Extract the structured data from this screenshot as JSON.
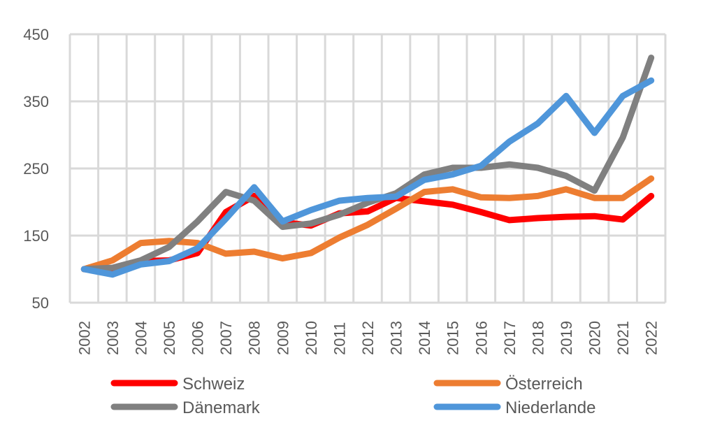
{
  "chart_data": {
    "type": "line",
    "title": "",
    "xlabel": "",
    "ylabel": "",
    "ylim": [
      50,
      450
    ],
    "yticks": [
      "50",
      "150",
      "250",
      "350",
      "450"
    ],
    "grid": true,
    "legend_position": "bottom",
    "categories": [
      "2002",
      "2003",
      "2004",
      "2005",
      "2006",
      "2007",
      "2008",
      "2009",
      "2010",
      "2011",
      "2012",
      "2013",
      "2014",
      "2015",
      "2016",
      "2017",
      "2018",
      "2019",
      "2020",
      "2021",
      "2022"
    ],
    "series": [
      {
        "name": "Schweiz",
        "color": "#FF0000",
        "values": [
          100,
          97,
          112,
          113,
          124,
          185,
          209,
          170,
          165,
          183,
          186,
          206,
          201,
          196,
          185,
          173,
          176,
          178,
          179,
          174,
          209
        ]
      },
      {
        "name": "Österreich",
        "color": "#ED7D31",
        "values": [
          100,
          113,
          139,
          142,
          139,
          123,
          126,
          116,
          124,
          147,
          166,
          190,
          215,
          219,
          207,
          206,
          209,
          219,
          206,
          206,
          235
        ]
      },
      {
        "name": "Dänemark",
        "color": "#808080",
        "values": [
          100,
          102,
          113,
          133,
          171,
          215,
          202,
          163,
          168,
          181,
          199,
          213,
          241,
          251,
          251,
          256,
          251,
          239,
          217,
          296,
          415
        ]
      },
      {
        "name": "Niederlande",
        "color": "#4F96DA",
        "values": [
          100,
          92,
          107,
          112,
          131,
          175,
          222,
          171,
          188,
          202,
          206,
          208,
          233,
          241,
          254,
          290,
          317,
          358,
          303,
          358,
          381
        ]
      }
    ]
  }
}
